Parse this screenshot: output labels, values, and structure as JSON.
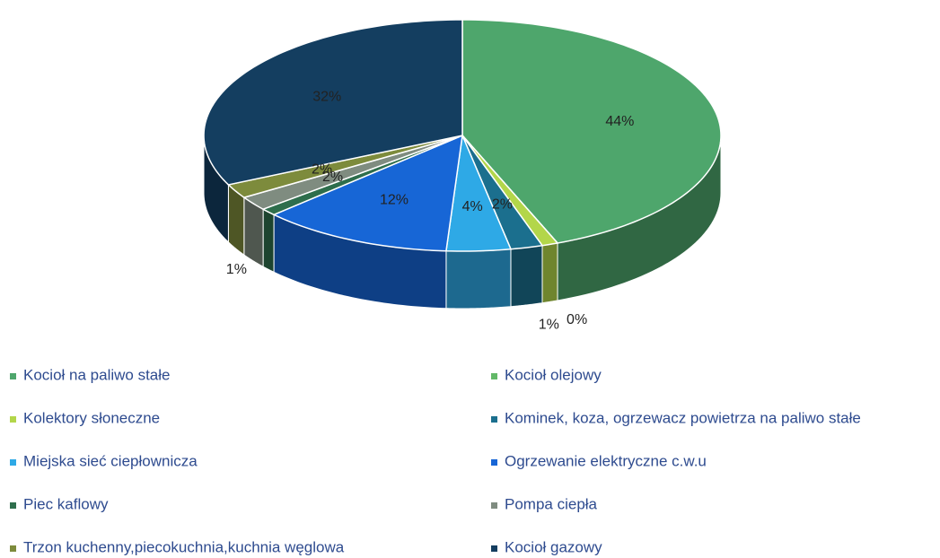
{
  "chart_data": {
    "type": "pie",
    "three_d": true,
    "categories": [
      "Kocioł na paliwo stałe",
      "Kocioł olejowy",
      "Kolektory słoneczne",
      "Kominek, koza, ogrzewacz powietrza na paliwo stałe",
      "Miejska sieć ciepłownicza",
      "Ogrzewanie elektryczne c.w.u",
      "Piec kaflowy",
      "Pompa ciepła",
      "Trzon kuchenny,piecokuchnia,kuchnia węglowa",
      "Kocioł gazowy"
    ],
    "values": [
      44,
      0,
      1,
      2,
      4,
      12,
      1,
      2,
      2,
      32
    ],
    "value_labels": [
      "44%",
      "0%",
      "1%",
      "2%",
      "4%",
      "12%",
      "1%",
      "2%",
      "2%",
      "32%"
    ],
    "colors": [
      "#4ea66c",
      "#62b868",
      "#b3d64a",
      "#1b6f8e",
      "#2ea9e6",
      "#1766d6",
      "#2e6e4c",
      "#7f8c80",
      "#7d8b3c",
      "#143e60"
    ],
    "legend": "bottom"
  }
}
